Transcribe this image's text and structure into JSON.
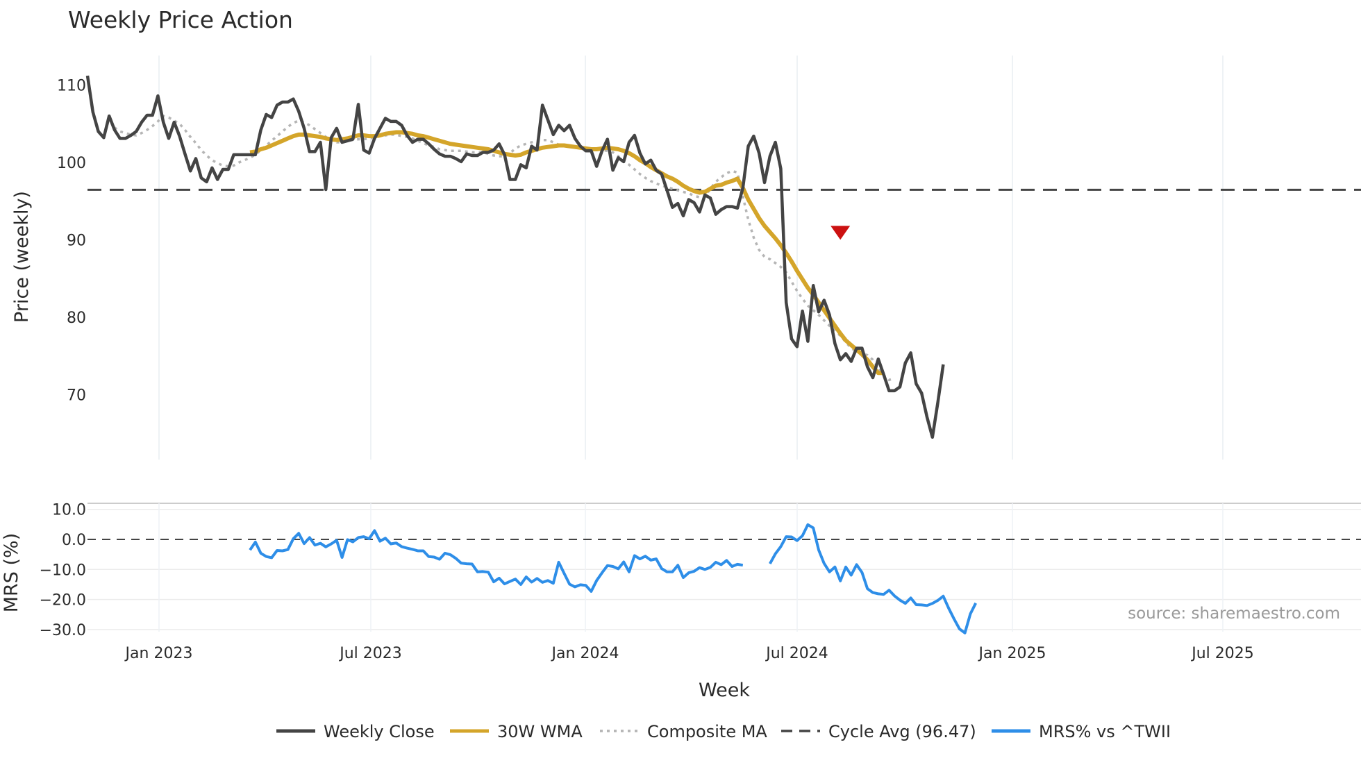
{
  "chart_data": {
    "type": "line",
    "title": "Weekly Price Action",
    "xlabel": "Week",
    "x_ticks": [
      "Jan 2023",
      "Jul 2023",
      "Jan 2024",
      "Jul 2024",
      "Jan 2025",
      "Jul 2025"
    ],
    "price_panel": {
      "ylabel": "Price (weekly)",
      "ylim": [
        62,
        114
      ],
      "y_ticks": [
        "110",
        "100",
        "90",
        "80",
        "70"
      ],
      "weekly_close": [
        111.2,
        106.5,
        104.0,
        103.2,
        106.0,
        104.2,
        103.1,
        103.1,
        103.5,
        104.0,
        105.2,
        106.1,
        106.1,
        108.6,
        105.2,
        103.1,
        105.2,
        103.4,
        101.1,
        98.9,
        100.5,
        98.0,
        97.5,
        99.3,
        97.8,
        99.1,
        99.1,
        101.0,
        101.0,
        101.0,
        101.0,
        101.0,
        104.2,
        106.2,
        105.8,
        107.4,
        107.8,
        107.8,
        108.2,
        106.6,
        104.4,
        101.4,
        101.4,
        102.6,
        96.5,
        103.2,
        104.4,
        102.6,
        102.8,
        103.0,
        107.5,
        101.6,
        101.2,
        103.1,
        104.4,
        105.7,
        105.3,
        105.3,
        104.8,
        103.5,
        102.6,
        103.0,
        103.0,
        102.4,
        101.7,
        101.1,
        100.8,
        100.8,
        100.5,
        100.1,
        101.1,
        100.9,
        100.9,
        101.3,
        101.3,
        101.6,
        102.4,
        101.0,
        97.8,
        97.8,
        99.7,
        99.3,
        102.1,
        101.6,
        107.4,
        105.5,
        103.6,
        104.8,
        104.1,
        104.8,
        103.1,
        102.1,
        101.5,
        101.5,
        99.5,
        101.5,
        103.0,
        99.0,
        100.6,
        100.1,
        102.6,
        103.5,
        101.2,
        99.8,
        100.3,
        99.0,
        98.5,
        96.4,
        94.2,
        94.7,
        93.1,
        95.2,
        94.8,
        93.6,
        95.8,
        95.4,
        93.3,
        93.9,
        94.3,
        94.3,
        94.1,
        96.7,
        102.1,
        103.4,
        101.2,
        97.4,
        100.8,
        102.6,
        99.2,
        81.9,
        77.2,
        76.2,
        80.8,
        76.9,
        84.1,
        80.7,
        82.2,
        80.3,
        76.6,
        74.5,
        75.3,
        74.3,
        76.0,
        76.0,
        73.6,
        72.2,
        74.6,
        72.6,
        70.5,
        70.5,
        71.0,
        74.1,
        75.4,
        71.4,
        70.2,
        67.1,
        64.5,
        69.0,
        73.9
      ],
      "wma_30w_start_index": 30,
      "wma_30w": [
        101.3,
        101.4,
        101.7,
        101.9,
        102.2,
        102.5,
        102.8,
        103.1,
        103.4,
        103.6,
        103.6,
        103.5,
        103.4,
        103.3,
        103.1,
        103.0,
        102.9,
        103.0,
        103.1,
        103.3,
        103.5,
        103.5,
        103.4,
        103.4,
        103.5,
        103.7,
        103.8,
        103.9,
        103.9,
        103.8,
        103.7,
        103.5,
        103.4,
        103.2,
        103.0,
        102.8,
        102.6,
        102.4,
        102.3,
        102.2,
        102.1,
        102.0,
        101.9,
        101.8,
        101.7,
        101.5,
        101.3,
        101.1,
        101.0,
        100.9,
        101.0,
        101.3,
        101.5,
        101.7,
        101.9,
        102.0,
        102.1,
        102.2,
        102.2,
        102.1,
        102.0,
        101.9,
        101.8,
        101.7,
        101.7,
        101.8,
        101.9,
        101.8,
        101.7,
        101.5,
        101.2,
        100.8,
        100.3,
        99.9,
        99.4,
        99.0,
        98.6,
        98.2,
        97.9,
        97.5,
        97.0,
        96.6,
        96.3,
        96.1,
        96.2,
        96.6,
        97.0,
        97.1,
        97.4,
        97.6,
        97.9,
        96.7,
        95.2,
        94.0,
        92.8,
        91.8,
        91.0,
        90.2,
        89.3,
        88.3,
        87.2,
        86.0,
        84.9,
        83.8,
        82.9,
        81.9,
        80.9,
        79.9,
        78.9,
        77.9,
        77.0,
        76.4,
        75.8,
        75.2,
        74.5,
        73.6,
        72.8,
        72.8
      ],
      "composite_ma_start_index": 5,
      "composite_ma": [
        104.5,
        104.0,
        103.8,
        103.6,
        103.5,
        103.8,
        104.2,
        104.7,
        105.3,
        106.0,
        105.8,
        105.4,
        105.0,
        104.2,
        103.3,
        102.5,
        101.6,
        100.9,
        100.3,
        99.9,
        99.6,
        99.5,
        99.6,
        100.0,
        100.3,
        100.6,
        101.0,
        101.6,
        102.2,
        102.8,
        103.4,
        104.0,
        104.6,
        105.1,
        105.4,
        105.2,
        104.8,
        104.3,
        103.8,
        103.3,
        102.8,
        102.6,
        102.6,
        102.8,
        102.9,
        103.0,
        103.0,
        103.1,
        103.2,
        103.4,
        103.5,
        103.6,
        103.6,
        103.4,
        103.3,
        103.1,
        102.8,
        102.5,
        102.2,
        102.0,
        101.7,
        101.6,
        101.5,
        101.5,
        101.5,
        101.4,
        101.3,
        101.3,
        101.3,
        101.1,
        100.9,
        100.8,
        100.8,
        101.2,
        101.8,
        102.2,
        102.4,
        102.6,
        102.8,
        102.9,
        102.9,
        102.6,
        102.3,
        102.2,
        102.1,
        102.0,
        101.8,
        101.8,
        101.7,
        101.7,
        101.6,
        101.5,
        101.3,
        100.8,
        100.2,
        99.7,
        99.1,
        98.5,
        98.0,
        97.6,
        97.3,
        97.0,
        96.8,
        96.6,
        96.4,
        96.2,
        96.0,
        95.7,
        95.5,
        95.6,
        96.6,
        97.5,
        98.1,
        98.6,
        98.9,
        98.7,
        95.6,
        92.6,
        90.3,
        88.7,
        87.8,
        87.5,
        87.0,
        86.5,
        85.8,
        84.6,
        83.4,
        82.4,
        81.5,
        80.9,
        80.3,
        79.6,
        78.9,
        78.3,
        77.6,
        76.8,
        76.0,
        75.6,
        75.3,
        75.1,
        74.5,
        73.4,
        72.5,
        71.9,
        72.1
      ],
      "cycle_avg_label": "Cycle Avg (96.47)",
      "cycle_avg": 96.47,
      "sell_signal": {
        "index": 139,
        "value": 91.0
      }
    },
    "mrs_panel": {
      "ylabel": "MRS (%)",
      "ylim": [
        -32,
        12
      ],
      "y_ticks": [
        "10.0",
        "0.0",
        "−10.0",
        "−20.0",
        "−30.0"
      ],
      "zero_line": 0,
      "series_1_start_index": 30,
      "series_1": [
        -3.5,
        -0.9,
        -4.6,
        -5.7,
        -6.1,
        -3.7,
        -3.8,
        -3.4,
        0.2,
        2.0,
        -1.4,
        0.6,
        -1.9,
        -1.3,
        -2.5,
        -1.5,
        -0.3,
        -6.0,
        -0.1,
        -0.8,
        0.6,
        0.9,
        0.2,
        2.9,
        -0.6,
        0.4,
        -1.5,
        -1.2,
        -2.4,
        -2.9,
        -3.3,
        -3.8,
        -3.8,
        -5.7,
        -5.9,
        -6.6,
        -4.6,
        -5.1,
        -6.3,
        -7.9,
        -8.1,
        -8.2,
        -10.8,
        -10.7,
        -10.9,
        -14.1,
        -12.9,
        -14.8,
        -14.0,
        -13.2,
        -15.0,
        -12.5,
        -14.2,
        -13.0,
        -14.3,
        -13.7,
        -14.6,
        -7.6,
        -11.3,
        -14.9,
        -15.8,
        -15.1,
        -15.3,
        -17.3,
        -13.7,
        -11.1,
        -8.7,
        -9.0,
        -9.8,
        -7.5,
        -10.8,
        -5.4,
        -6.5,
        -5.6,
        -6.9,
        -6.5,
        -9.7,
        -10.8,
        -10.8,
        -8.6,
        -12.7,
        -11.1,
        -10.6,
        -9.4,
        -10.0,
        -9.3,
        -7.6,
        -8.4,
        -7.0,
        -9.0,
        -8.3,
        -8.6
      ],
      "series_2_start_index": 126,
      "series_2": [
        -8.1,
        -4.8,
        -2.4,
        0.9,
        0.8,
        -0.4,
        1.2,
        4.9,
        3.8,
        -3.5,
        -8.0,
        -10.8,
        -9.2,
        -13.8,
        -9.2,
        -11.9,
        -8.4,
        -11.0,
        -16.4,
        -17.7,
        -18.1,
        -18.3,
        -16.9,
        -18.8,
        -20.2,
        -21.3,
        -19.5,
        -21.7,
        -21.8,
        -22.0,
        -21.3,
        -20.3,
        -18.9,
        -22.9,
        -26.5,
        -29.8,
        -31.1,
        -24.8,
        -21.2
      ]
    },
    "legend": [
      {
        "label": "Weekly Close",
        "color": "#444444",
        "dash": "solid"
      },
      {
        "label": "30W WMA",
        "color": "#d4a52a",
        "dash": "solid"
      },
      {
        "label": "Composite MA",
        "color": "#b3b3b3",
        "dash": "dot"
      },
      {
        "label": "Cycle Avg (96.47)",
        "color": "#444444",
        "dash": "dash"
      },
      {
        "label": "MRS% vs ^TWII",
        "color": "#2e8ee8",
        "dash": "solid"
      }
    ],
    "source_text": "source: sharemaestro.com"
  }
}
